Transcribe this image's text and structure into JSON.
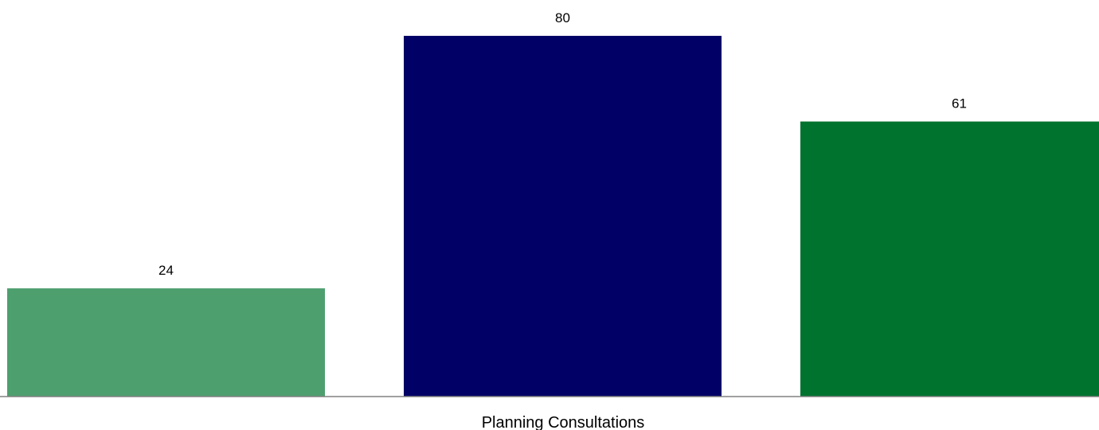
{
  "chart_data": {
    "type": "bar",
    "categories": [
      "Planning Consultations"
    ],
    "series": [
      {
        "values": [
          24
        ],
        "color": "#4e9f6e"
      },
      {
        "values": [
          80
        ],
        "color": "#000066"
      },
      {
        "values": [
          61
        ],
        "color": "#00732f"
      }
    ],
    "value_labels": [
      "24",
      "80",
      "61"
    ],
    "ylim": [
      0,
      80
    ],
    "grid": false,
    "legend": "none",
    "axis_color": "#808080"
  }
}
